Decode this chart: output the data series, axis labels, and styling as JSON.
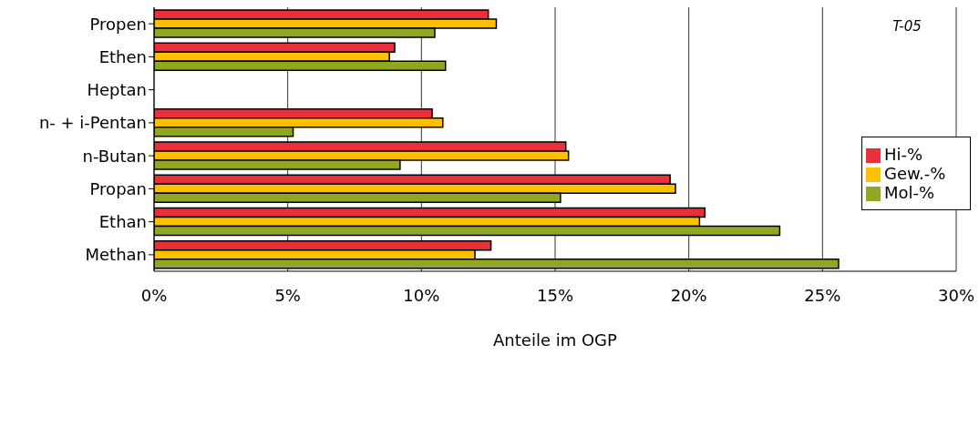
{
  "chart_data": {
    "type": "bar",
    "orientation": "horizontal",
    "xlabel": "Anteile im OGP",
    "annotations": [
      "T-05"
    ],
    "categories": [
      "Propen",
      "Ethen",
      "Heptan",
      "n- + i-Pentan",
      "n-Butan",
      "Propan",
      "Ethan",
      "Methan"
    ],
    "series": [
      {
        "name": "Hi-%",
        "color": "#e8303a",
        "values": [
          12.5,
          9.0,
          null,
          10.4,
          15.4,
          19.3,
          20.6,
          12.6
        ]
      },
      {
        "name": "Gew.-%",
        "color": "#ffc000",
        "values": [
          12.8,
          8.8,
          null,
          10.8,
          15.5,
          19.5,
          20.4,
          12.0
        ]
      },
      {
        "name": "Mol-%",
        "color": "#8fa81f",
        "values": [
          10.5,
          10.9,
          null,
          5.2,
          9.2,
          15.2,
          23.4,
          25.6
        ]
      }
    ],
    "xlim": [
      0,
      30
    ],
    "xticks": [
      {
        "value": 0,
        "label": "0%"
      },
      {
        "value": 5,
        "label": "5%"
      },
      {
        "value": 10,
        "label": "10%"
      },
      {
        "value": 15,
        "label": "15%"
      },
      {
        "value": 20,
        "label": "20%"
      },
      {
        "value": 25,
        "label": "25%"
      },
      {
        "value": 30,
        "label": "30%"
      }
    ],
    "grid": "x",
    "legend": "right"
  }
}
